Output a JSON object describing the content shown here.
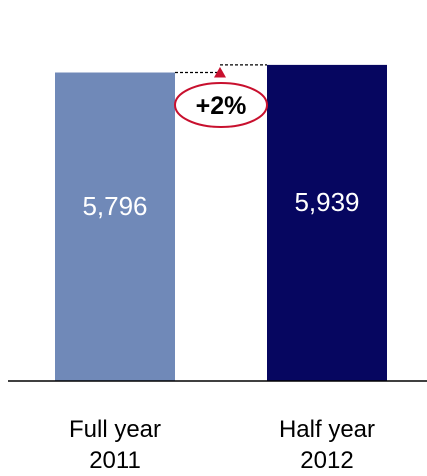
{
  "chart_data": {
    "type": "bar",
    "categories": [
      [
        "Full year",
        "2011"
      ],
      [
        "Half year",
        "2012"
      ]
    ],
    "values": [
      5796,
      5939
    ],
    "value_labels": [
      "5,796",
      "5,939"
    ],
    "bar_colors": [
      "#7089b8",
      "#060660"
    ],
    "value_label_color": "#ffffff",
    "annotation": {
      "text": "+2%",
      "color": "#c8102e",
      "from_category": 0,
      "to_category": 1
    },
    "ylim": [
      0,
      6200
    ],
    "grid": false
  }
}
